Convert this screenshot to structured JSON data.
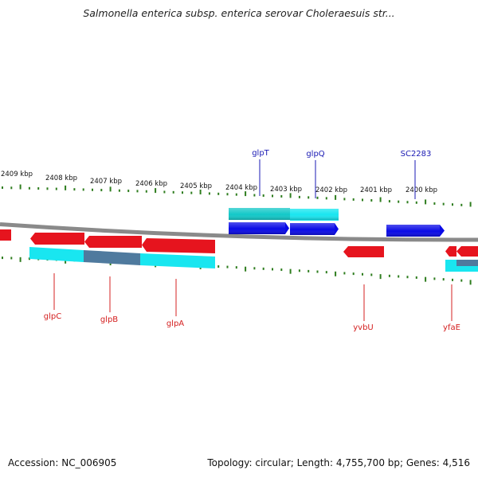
{
  "title": "Salmonella enterica subsp. enterica serovar Choleraesuis str...",
  "footer": {
    "accession": "Accession: NC_006905",
    "summary": "Topology: circular; Length: 4,755,700 bp; Genes: 4,516"
  },
  "colors": {
    "backbone": "#8a8a8a",
    "tick": "#2e7d1e",
    "forward_cds": "#0a0ae6",
    "reverse_cds": "#e6141e",
    "forward_gene": "#12c8c8",
    "reverse_gene": "#19e6f0",
    "overlap_gene": "#4f7a9e",
    "forward_label": "#1a1ab4",
    "reverse_label": "#d42020",
    "axis_label": "#111111"
  },
  "axis_labels": [
    "2409 kbp",
    "2408 kbp",
    "2407 kbp",
    "2406 kbp",
    "2405 kbp",
    "2404 kbp",
    "2403 kbp",
    "2402 kbp",
    "2401 kbp",
    "2400 kbp"
  ],
  "gene_labels": {
    "forward": [
      "glpT",
      "glpQ",
      "SC2283"
    ],
    "reverse": [
      "glpC",
      "glpB",
      "glpA",
      "yvbU",
      "yfaE"
    ]
  }
}
